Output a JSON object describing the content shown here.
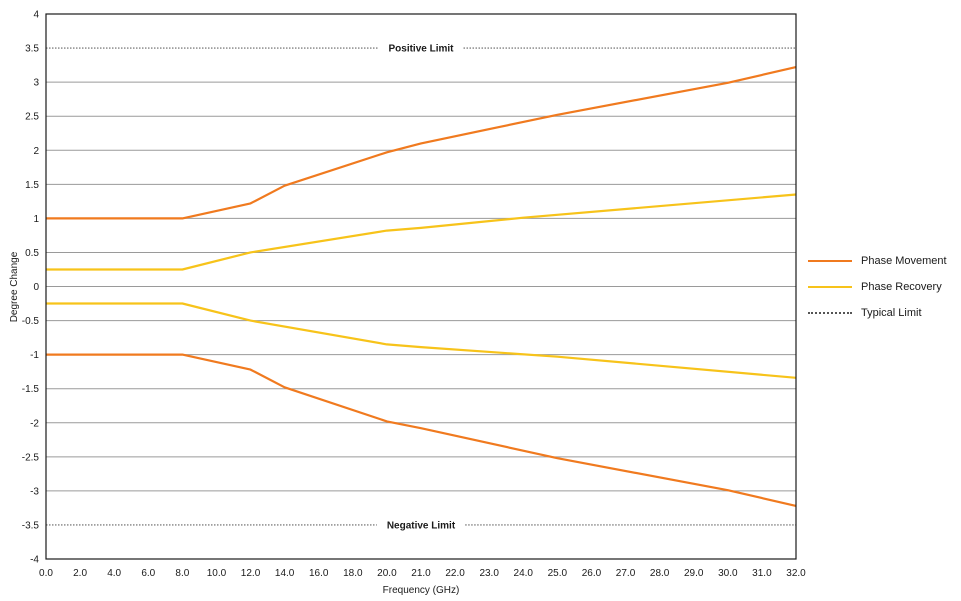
{
  "chart_data": {
    "type": "line",
    "title": "",
    "xlabel": "Frequency (GHz)",
    "ylabel": "Degree Change",
    "ylim": [
      -4,
      4
    ],
    "y_ticks": [
      "4",
      "3.5",
      "3",
      "2.5",
      "2",
      "1.5",
      "1",
      "0.5",
      "0",
      "-0.5",
      "-1",
      "-1.5",
      "-2",
      "-2.5",
      "-3",
      "-3.5",
      "-4"
    ],
    "x_ticks": [
      "0.0",
      "2.0",
      "4.0",
      "6.0",
      "8.0",
      "10.0",
      "12.0",
      "14.0",
      "16.0",
      "18.0",
      "20.0",
      "21.0",
      "22.0",
      "23.0",
      "24.0",
      "25.0",
      "26.0",
      "27.0",
      "28.0",
      "29.0",
      "30.0",
      "31.0",
      "32.0"
    ],
    "grid": true,
    "legend_position": "right",
    "series": [
      {
        "name": "Phase Movement",
        "color": "#f07a1f",
        "band": "upper",
        "points": [
          [
            "0.0",
            1.0
          ],
          [
            "8.0",
            1.0
          ],
          [
            "12.0",
            1.22
          ],
          [
            "14.0",
            1.48
          ],
          [
            "20.0",
            1.97
          ],
          [
            "21.0",
            2.1
          ],
          [
            "25.0",
            2.52
          ],
          [
            "30.0",
            2.99
          ],
          [
            "32.0",
            3.22
          ]
        ]
      },
      {
        "name": "Phase Movement",
        "color": "#f07a1f",
        "band": "lower",
        "points": [
          [
            "0.0",
            -1.0
          ],
          [
            "8.0",
            -1.0
          ],
          [
            "12.0",
            -1.22
          ],
          [
            "14.0",
            -1.48
          ],
          [
            "20.0",
            -1.98
          ],
          [
            "21.0",
            -2.08
          ],
          [
            "25.0",
            -2.52
          ],
          [
            "30.0",
            -2.99
          ],
          [
            "32.0",
            -3.22
          ]
        ]
      },
      {
        "name": "Phase Recovery",
        "color": "#f7c31a",
        "band": "upper",
        "points": [
          [
            "0.0",
            0.25
          ],
          [
            "8.0",
            0.25
          ],
          [
            "12.0",
            0.5
          ],
          [
            "20.0",
            0.82
          ],
          [
            "21.0",
            0.86
          ],
          [
            "24.0",
            1.01
          ],
          [
            "32.0",
            1.35
          ]
        ]
      },
      {
        "name": "Phase Recovery",
        "color": "#f7c31a",
        "band": "lower",
        "points": [
          [
            "0.0",
            -0.25
          ],
          [
            "8.0",
            -0.25
          ],
          [
            "12.0",
            -0.5
          ],
          [
            "20.0",
            -0.85
          ],
          [
            "21.0",
            -0.89
          ],
          [
            "25.0",
            -1.03
          ],
          [
            "32.0",
            -1.34
          ]
        ]
      }
    ],
    "limits": [
      {
        "name": "Typical Limit",
        "label": "Positive Limit",
        "value": 3.5
      },
      {
        "name": "Typical Limit",
        "label": "Negative Limit",
        "value": -3.5
      }
    ],
    "legend": [
      {
        "label": "Phase Movement",
        "style": "solid",
        "color": "#f07a1f"
      },
      {
        "label": "Phase Recovery",
        "style": "solid",
        "color": "#f7c31a"
      },
      {
        "label": "Typical Limit",
        "style": "dotted",
        "color": "#555555"
      }
    ]
  }
}
